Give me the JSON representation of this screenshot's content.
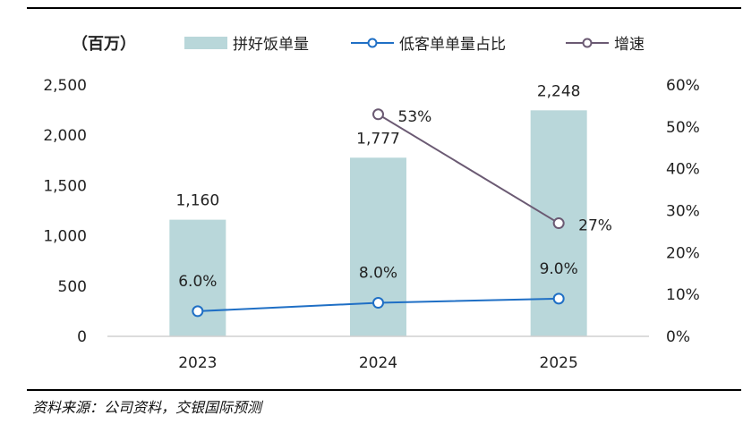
{
  "chart_data": {
    "type": "bar",
    "categories": [
      "2023",
      "2024",
      "2025"
    ],
    "unit_label": "（百万）",
    "series": [
      {
        "name": "拼好饭单量",
        "type": "bar",
        "axis": "left",
        "values": [
          1160,
          1777,
          2248
        ],
        "labels": [
          "1,160",
          "1,777",
          "2,248"
        ],
        "color": "#b9d7da"
      },
      {
        "name": "低客单单量占比",
        "type": "line",
        "axis": "right",
        "values": [
          6.0,
          8.0,
          9.0
        ],
        "labels": [
          "6.0%",
          "8.0%",
          "9.0%"
        ],
        "color": "#1f6fc5"
      },
      {
        "name": "增速",
        "type": "line",
        "axis": "right",
        "values": [
          null,
          53,
          27
        ],
        "labels": [
          "",
          "53%",
          "27%"
        ],
        "color": "#6b5a73"
      }
    ],
    "y_left": {
      "ylim": [
        0,
        2500
      ],
      "ticks": [
        "0",
        "500",
        "1,000",
        "1,500",
        "2,000",
        "2,500"
      ]
    },
    "y_right": {
      "ylim": [
        0,
        60
      ],
      "ticks": [
        "0%",
        "10%",
        "20%",
        "30%",
        "40%",
        "50%",
        "60%"
      ]
    },
    "legend_position": "top",
    "grid": false
  },
  "source": "资料来源：公司资料，交银国际预测"
}
